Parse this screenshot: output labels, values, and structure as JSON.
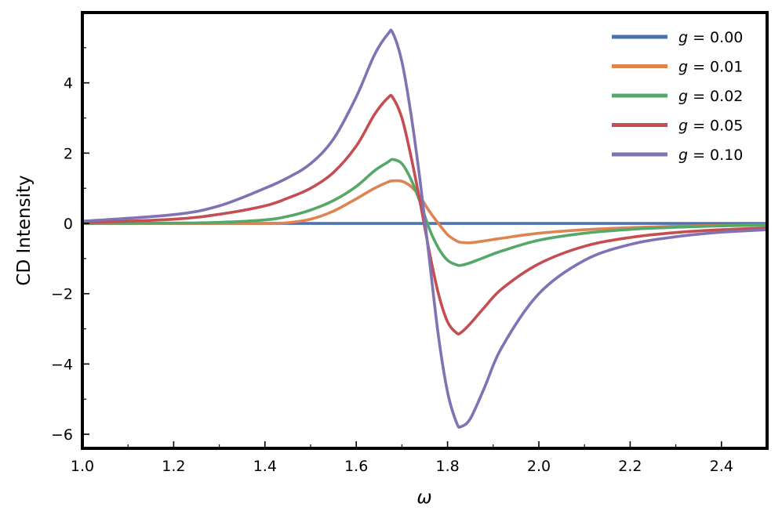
{
  "chart_data": {
    "type": "line",
    "xlabel": "ω",
    "ylabel": "CD Intensity",
    "xlim": [
      1.0,
      2.5
    ],
    "ylim": [
      -6.4,
      6.0
    ],
    "x_ticks": [
      "1.0",
      "1.2",
      "1.4",
      "1.6",
      "1.8",
      "2.0",
      "2.2",
      "2.4"
    ],
    "x_tick_values": [
      1.0,
      1.2,
      1.4,
      1.6,
      1.8,
      2.0,
      2.2,
      2.4
    ],
    "y_ticks": [
      "−6",
      "−4",
      "−2",
      "0",
      "2",
      "4"
    ],
    "y_tick_values": [
      -6,
      -4,
      -2,
      0,
      2,
      4
    ],
    "grid": false,
    "legend_position": "top-right",
    "x": [
      1.0,
      1.2,
      1.3,
      1.4,
      1.45,
      1.5,
      1.55,
      1.6,
      1.64,
      1.67,
      1.68,
      1.7,
      1.72,
      1.74,
      1.76,
      1.78,
      1.8,
      1.82,
      1.83,
      1.85,
      1.88,
      1.92,
      2.0,
      2.1,
      2.2,
      2.3,
      2.4,
      2.5
    ],
    "series": [
      {
        "name": "g = 0.00",
        "legend_prefix": "g",
        "legend_value": " = 0.00",
        "color": "#4c72b0",
        "values": [
          0,
          0,
          0,
          0,
          0,
          0,
          0,
          0,
          0,
          0,
          0,
          0,
          0,
          0,
          0,
          0,
          0,
          0,
          0,
          0,
          0,
          0,
          0,
          0,
          0,
          0,
          0,
          0
        ]
      },
      {
        "name": "g = 0.01",
        "legend_prefix": "g",
        "legend_value": " = 0.01",
        "color": "#dd8452",
        "values": [
          0,
          0,
          0,
          0,
          0.02,
          0.12,
          0.35,
          0.7,
          1.0,
          1.18,
          1.21,
          1.2,
          1.05,
          0.75,
          0.35,
          0.0,
          -0.32,
          -0.5,
          -0.54,
          -0.55,
          -0.5,
          -0.42,
          -0.28,
          -0.18,
          -0.12,
          -0.08,
          -0.06,
          -0.04
        ]
      },
      {
        "name": "g = 0.02",
        "legend_prefix": "g",
        "legend_value": " = 0.02",
        "color": "#55a868",
        "values": [
          0,
          0.01,
          0.03,
          0.1,
          0.2,
          0.38,
          0.65,
          1.05,
          1.5,
          1.75,
          1.82,
          1.7,
          1.25,
          0.6,
          -0.15,
          -0.7,
          -1.05,
          -1.18,
          -1.19,
          -1.12,
          -0.97,
          -0.78,
          -0.48,
          -0.28,
          -0.17,
          -0.11,
          -0.07,
          -0.05
        ]
      },
      {
        "name": "g = 0.05",
        "legend_prefix": "g",
        "legend_value": " = 0.05",
        "color": "#c44e52",
        "values": [
          0.02,
          0.12,
          0.26,
          0.5,
          0.72,
          1.0,
          1.45,
          2.2,
          3.1,
          3.58,
          3.58,
          3.0,
          1.9,
          0.6,
          -0.8,
          -2.0,
          -2.8,
          -3.12,
          -3.1,
          -2.85,
          -2.4,
          -1.85,
          -1.15,
          -0.65,
          -0.4,
          -0.26,
          -0.18,
          -0.13
        ]
      },
      {
        "name": "g = 0.10",
        "legend_prefix": "g",
        "legend_value": " = 0.10",
        "color": "#8172b3",
        "values": [
          0.06,
          0.25,
          0.5,
          1.0,
          1.3,
          1.7,
          2.4,
          3.6,
          4.8,
          5.4,
          5.42,
          4.6,
          3.1,
          1.2,
          -1.0,
          -3.2,
          -4.8,
          -5.68,
          -5.78,
          -5.55,
          -4.7,
          -3.5,
          -2.0,
          -1.05,
          -0.6,
          -0.38,
          -0.25,
          -0.18
        ]
      }
    ]
  }
}
